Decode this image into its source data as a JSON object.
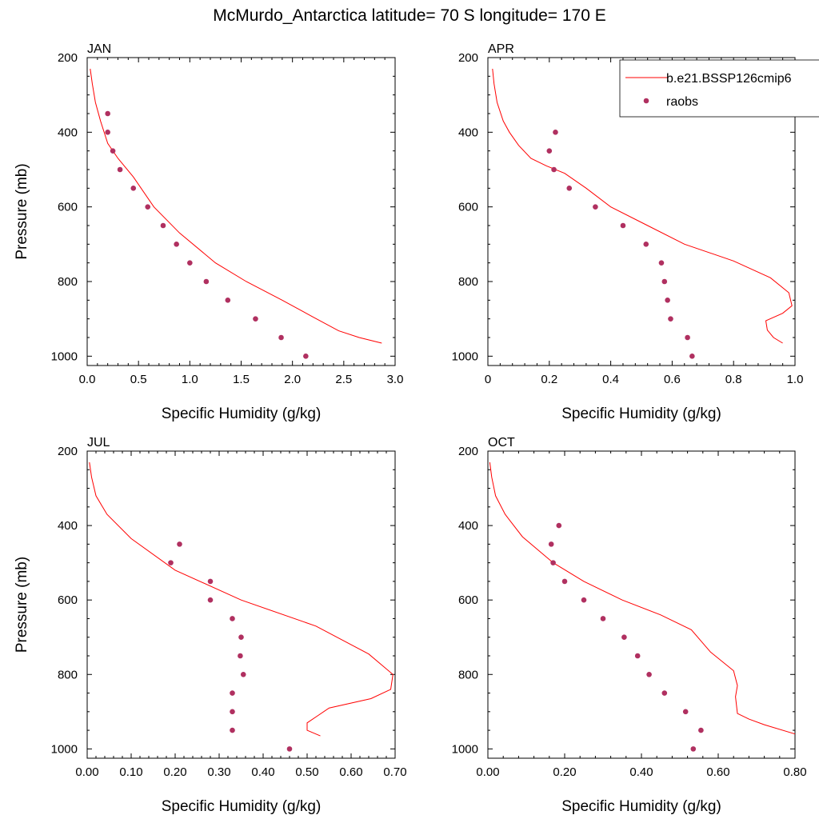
{
  "title": "McMurdo_Antarctica  latitude= 70 S longitude= 170 E",
  "colors": {
    "model": "#ff0000",
    "obs": "#b03060"
  },
  "legend": {
    "model_label": "b.e21.BSSP126cmip6",
    "obs_label": "raobs",
    "placement": "top-right of APR panel"
  },
  "chart_data": [
    {
      "type": "line",
      "panel": "JAN",
      "xlabel": "Specific Humidity (g/kg)",
      "ylabel": "Pressure (mb)",
      "xlim": [
        0,
        3.0
      ],
      "ylim": [
        1025,
        200
      ],
      "xticks": [
        "0.0",
        "0.5",
        "1.0",
        "1.5",
        "2.0",
        "2.5",
        "3.0"
      ],
      "xtick_values": [
        0,
        0.5,
        1.0,
        1.5,
        2.0,
        2.5,
        3.0
      ],
      "yticks": [
        "200",
        "400",
        "600",
        "800",
        "1000"
      ],
      "series": [
        {
          "name": "b.e21.BSSP126cmip6",
          "kind": "line",
          "x": [
            0.03,
            0.05,
            0.08,
            0.13,
            0.2,
            0.3,
            0.45,
            0.65,
            0.9,
            1.25,
            1.55,
            1.9,
            2.2,
            2.45,
            2.65,
            2.87
          ],
          "y": [
            230,
            270,
            320,
            370,
            430,
            470,
            520,
            600,
            670,
            750,
            800,
            850,
            895,
            932,
            950,
            965
          ]
        },
        {
          "name": "raobs",
          "kind": "scatter",
          "x": [
            0.2,
            0.2,
            0.25,
            0.32,
            0.45,
            0.59,
            0.74,
            0.87,
            1.0,
            1.16,
            1.37,
            1.64,
            1.89,
            2.13
          ],
          "y": [
            350,
            400,
            450,
            500,
            550,
            600,
            650,
            700,
            750,
            800,
            850,
            900,
            950,
            1000
          ]
        }
      ]
    },
    {
      "type": "line",
      "panel": "APR",
      "xlabel": "Specific Humidity (g/kg)",
      "ylabel": "",
      "xlim": [
        0,
        1.0
      ],
      "ylim": [
        1025,
        200
      ],
      "xticks": [
        "0",
        "0.2",
        "0.4",
        "0.6",
        "0.8",
        "1.0"
      ],
      "xtick_values": [
        0,
        0.2,
        0.4,
        0.6,
        0.8,
        1.0
      ],
      "yticks": [
        "200",
        "400",
        "600",
        "800",
        "1000"
      ],
      "series": [
        {
          "name": "b.e21.BSSP126cmip6",
          "kind": "line",
          "x": [
            0.015,
            0.02,
            0.03,
            0.05,
            0.07,
            0.1,
            0.14,
            0.19,
            0.25,
            0.32,
            0.4,
            0.52,
            0.64,
            0.8,
            0.92,
            0.98,
            0.99,
            0.96,
            0.905,
            0.91,
            0.93,
            0.96
          ],
          "y": [
            230,
            270,
            320,
            370,
            400,
            435,
            470,
            490,
            510,
            550,
            600,
            650,
            700,
            745,
            790,
            830,
            865,
            885,
            905,
            930,
            950,
            965
          ]
        },
        {
          "name": "raobs",
          "kind": "scatter",
          "x": [
            0.22,
            0.2,
            0.215,
            0.265,
            0.35,
            0.44,
            0.515,
            0.565,
            0.575,
            0.585,
            0.595,
            0.65,
            0.665
          ],
          "y": [
            400,
            450,
            500,
            550,
            600,
            650,
            700,
            750,
            800,
            850,
            900,
            950,
            1000
          ]
        }
      ]
    },
    {
      "type": "line",
      "panel": "JUL",
      "xlabel": "Specific Humidity (g/kg)",
      "ylabel": "Pressure (mb)",
      "xlim": [
        0,
        0.7
      ],
      "ylim": [
        1025,
        200
      ],
      "xticks": [
        "0.00",
        "0.10",
        "0.20",
        "0.30",
        "0.40",
        "0.50",
        "0.60",
        "0.70"
      ],
      "xtick_values": [
        0,
        0.1,
        0.2,
        0.3,
        0.4,
        0.5,
        0.6,
        0.7
      ],
      "yticks": [
        "200",
        "400",
        "600",
        "800",
        "1000"
      ],
      "series": [
        {
          "name": "b.e21.BSSP126cmip6",
          "kind": "line",
          "x": [
            0.005,
            0.01,
            0.02,
            0.045,
            0.1,
            0.2,
            0.35,
            0.52,
            0.64,
            0.695,
            0.69,
            0.645,
            0.55,
            0.525,
            0.5,
            0.5,
            0.53
          ],
          "y": [
            230,
            270,
            320,
            370,
            435,
            520,
            600,
            670,
            745,
            800,
            840,
            865,
            890,
            910,
            930,
            950,
            965
          ]
        },
        {
          "name": "raobs",
          "kind": "scatter",
          "x": [
            0.21,
            0.19,
            0.28,
            0.28,
            0.33,
            0.35,
            0.348,
            0.355,
            0.33,
            0.33,
            0.33,
            0.46
          ],
          "y": [
            450,
            500,
            550,
            600,
            650,
            700,
            750,
            800,
            850,
            900,
            950,
            1000
          ]
        }
      ]
    },
    {
      "type": "line",
      "panel": "OCT",
      "xlabel": "Specific Humidity (g/kg)",
      "ylabel": "",
      "xlim": [
        0,
        0.8
      ],
      "ylim": [
        1025,
        200
      ],
      "xticks": [
        "0.00",
        "0.20",
        "0.40",
        "0.60",
        "0.80"
      ],
      "xtick_values": [
        0,
        0.2,
        0.4,
        0.6,
        0.8
      ],
      "yticks": [
        "200",
        "400",
        "600",
        "800",
        "1000"
      ],
      "series": [
        {
          "name": "b.e21.BSSP126cmip6",
          "kind": "line",
          "x": [
            0.005,
            0.01,
            0.02,
            0.045,
            0.09,
            0.17,
            0.25,
            0.35,
            0.45,
            0.53,
            0.58,
            0.64,
            0.65,
            0.645,
            0.65,
            0.68,
            0.72,
            0.8
          ],
          "y": [
            230,
            270,
            320,
            370,
            430,
            500,
            550,
            600,
            640,
            680,
            740,
            790,
            830,
            860,
            905,
            920,
            935,
            960
          ]
        },
        {
          "name": "raobs",
          "kind": "scatter",
          "x": [
            0.185,
            0.165,
            0.17,
            0.2,
            0.25,
            0.3,
            0.355,
            0.39,
            0.42,
            0.46,
            0.515,
            0.555,
            0.535
          ],
          "y": [
            400,
            450,
            500,
            550,
            600,
            650,
            700,
            750,
            800,
            850,
            900,
            950,
            1000
          ]
        }
      ]
    }
  ]
}
